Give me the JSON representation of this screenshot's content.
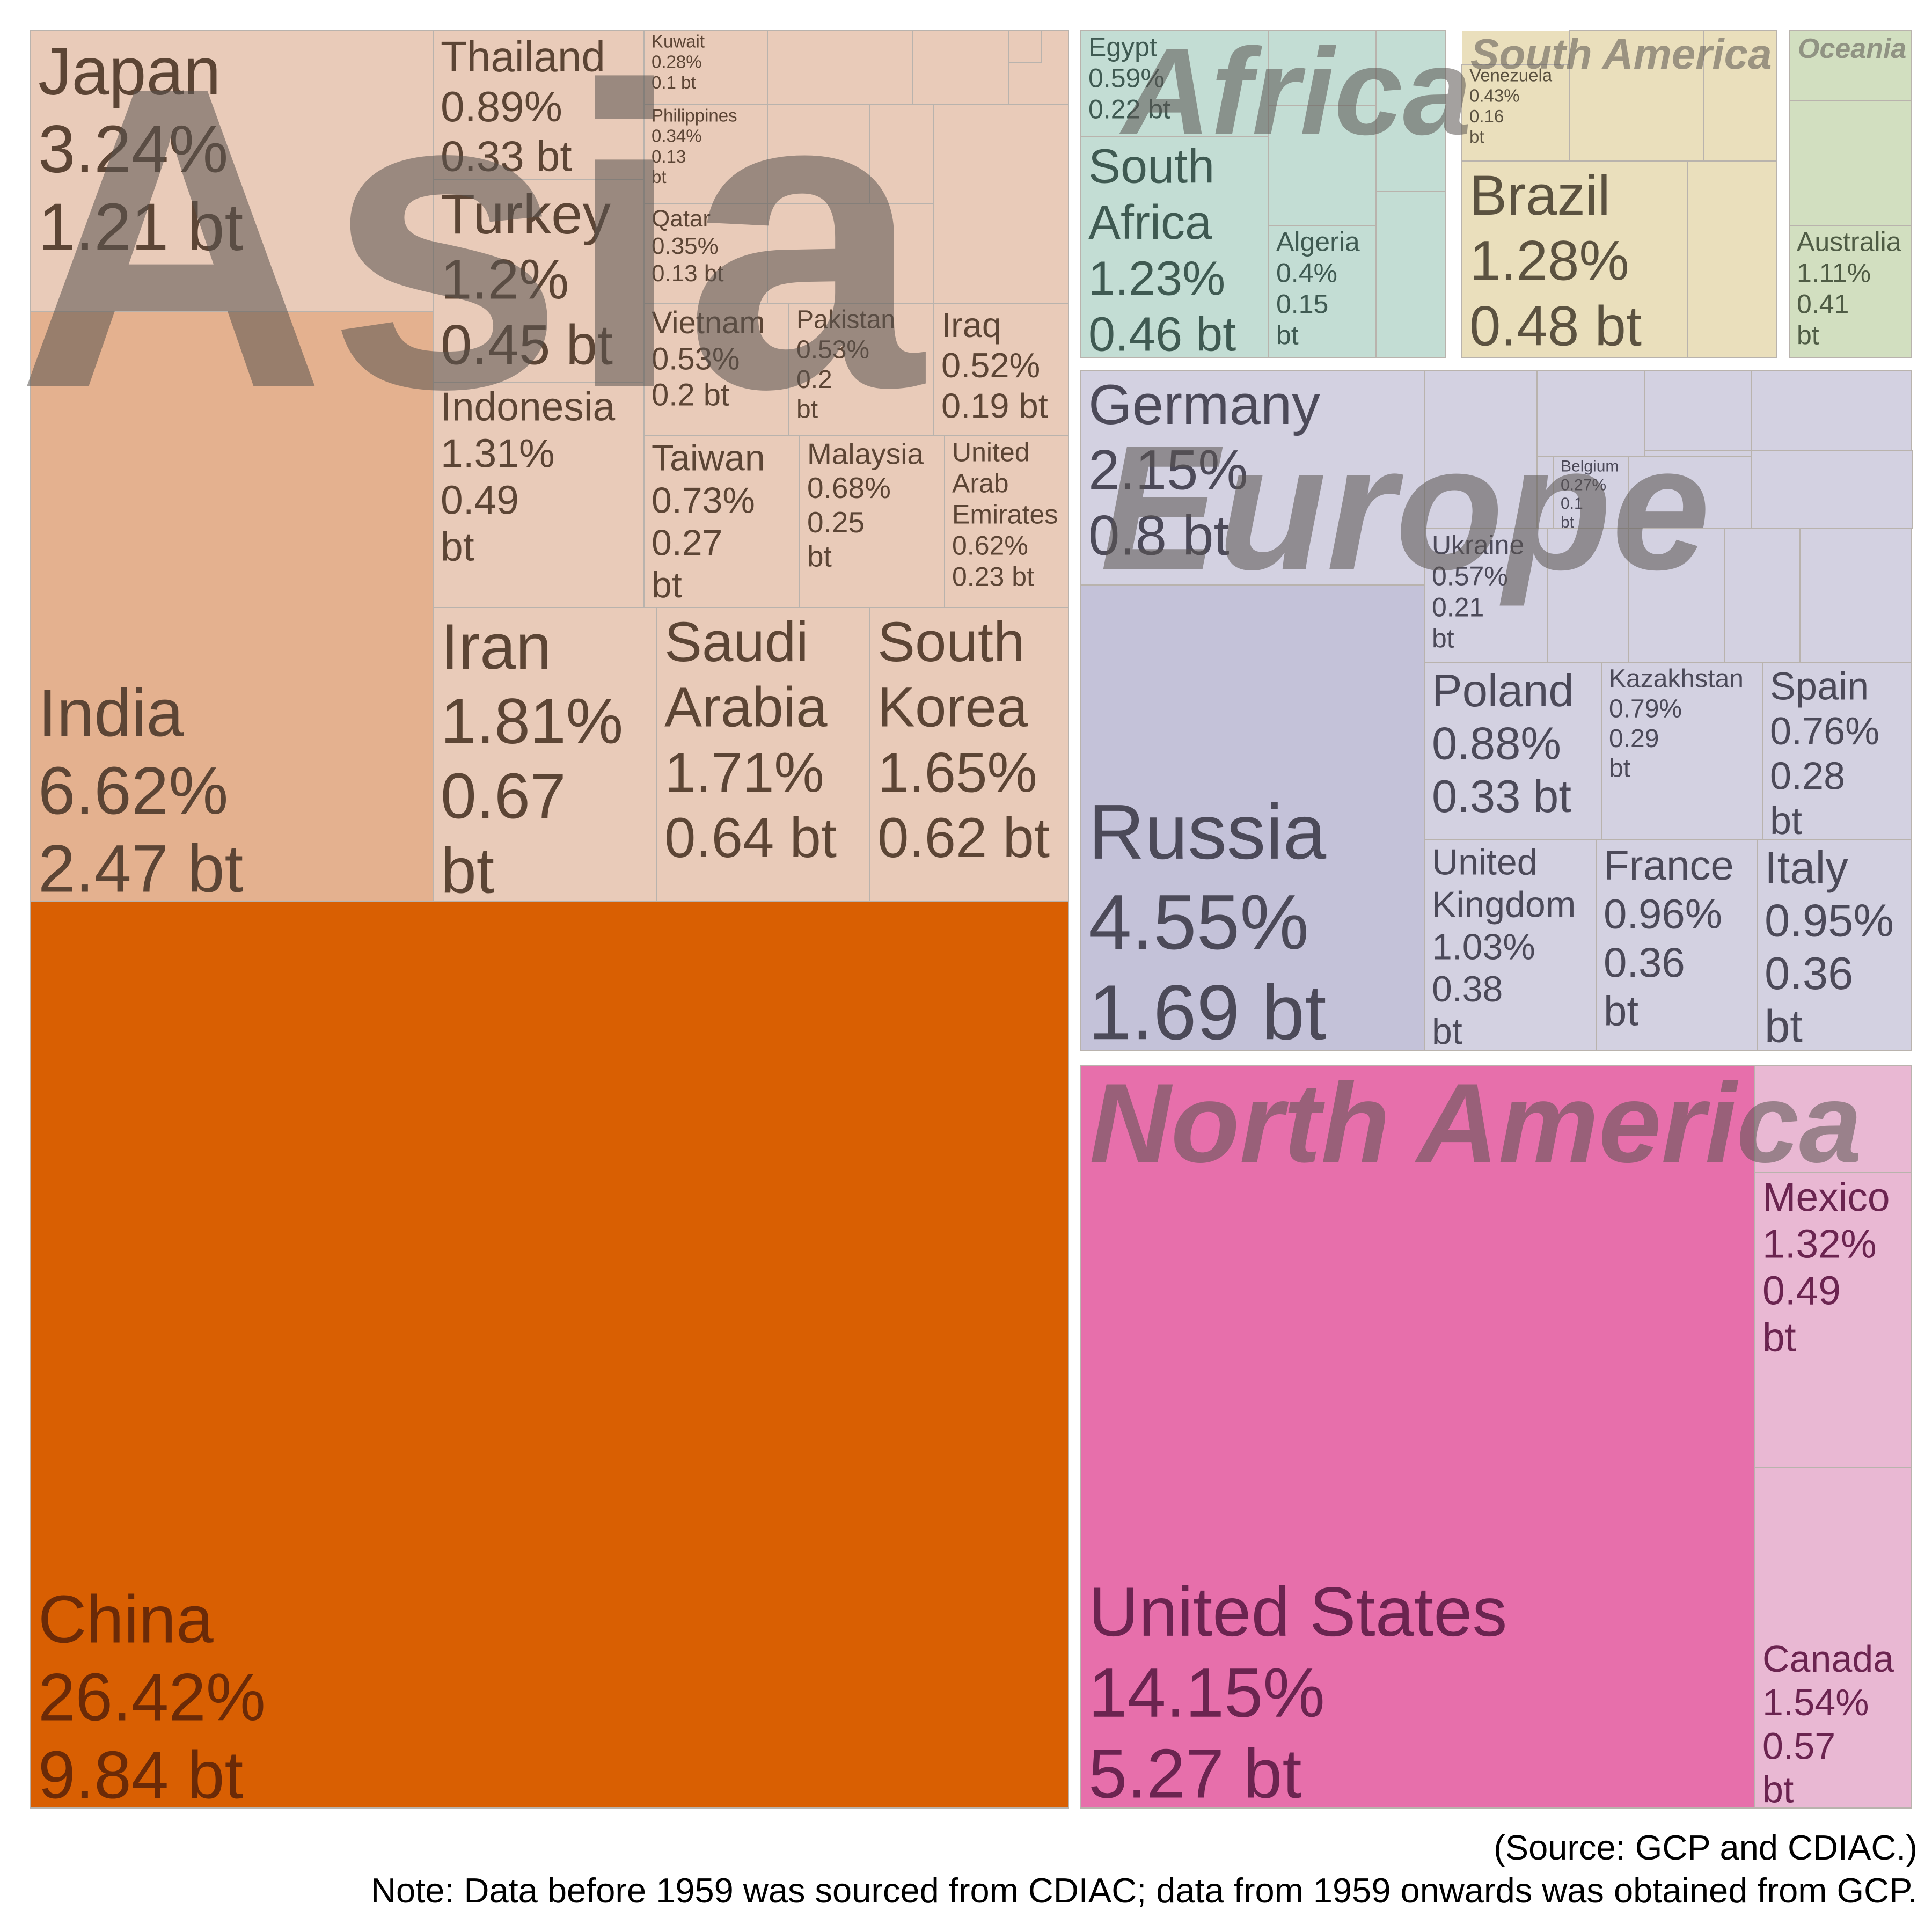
{
  "chart_data": {
    "type": "treemap",
    "title": "",
    "unit_share": "%",
    "unit_emissions": "bt",
    "groups": [
      {
        "name": "Asia",
        "color": "#e9cbb9",
        "items": [
          {
            "name": "China",
            "share": "26.42%",
            "value": "9.84 bt",
            "color": "#d95f02"
          },
          {
            "name": "India",
            "share": "6.62%",
            "value": "2.47 bt",
            "color": "#e4b18f"
          },
          {
            "name": "Japan",
            "share": "3.24%",
            "value": "1.21 bt"
          },
          {
            "name": "Iran",
            "share": "1.81%",
            "value": "0.67 bt"
          },
          {
            "name": "Saudi Arabia",
            "share": "1.71%",
            "value": "0.64 bt"
          },
          {
            "name": "South Korea",
            "share": "1.65%",
            "value": "0.62 bt"
          },
          {
            "name": "Indonesia",
            "share": "1.31%",
            "value": "0.49 bt"
          },
          {
            "name": "Turkey",
            "share": "1.2%",
            "value": "0.45 bt"
          },
          {
            "name": "Thailand",
            "share": "0.89%",
            "value": "0.33 bt"
          },
          {
            "name": "Taiwan",
            "share": "0.73%",
            "value": "0.27 bt"
          },
          {
            "name": "Malaysia",
            "share": "0.68%",
            "value": "0.25 bt"
          },
          {
            "name": "United Arab Emirates",
            "share": "0.62%",
            "value": "0.23 bt"
          },
          {
            "name": "Vietnam",
            "share": "0.53%",
            "value": "0.2 bt"
          },
          {
            "name": "Pakistan",
            "share": "0.53%",
            "value": "0.2 bt"
          },
          {
            "name": "Iraq",
            "share": "0.52%",
            "value": "0.19 bt"
          },
          {
            "name": "Qatar",
            "share": "0.35%",
            "value": "0.13 bt"
          },
          {
            "name": "Philippines",
            "share": "0.34%",
            "value": "0.13 bt"
          },
          {
            "name": "Kuwait",
            "share": "0.28%",
            "value": "0.1 bt"
          }
        ]
      },
      {
        "name": "North America",
        "color": "#e9b8d3",
        "items": [
          {
            "name": "United States",
            "share": "14.15%",
            "value": "5.27 bt",
            "color": "#e76fab"
          },
          {
            "name": "Canada",
            "share": "1.54%",
            "value": "0.57 bt"
          },
          {
            "name": "Mexico",
            "share": "1.32%",
            "value": "0.49 bt"
          }
        ]
      },
      {
        "name": "Europe",
        "color": "#d3d1e1",
        "items": [
          {
            "name": "Russia",
            "share": "4.55%",
            "value": "1.69 bt",
            "color": "#c4c2d9"
          },
          {
            "name": "Germany",
            "share": "2.15%",
            "value": "0.8 bt"
          },
          {
            "name": "United Kingdom",
            "share": "1.03%",
            "value": "0.38 bt"
          },
          {
            "name": "France",
            "share": "0.96%",
            "value": "0.36 bt"
          },
          {
            "name": "Italy",
            "share": "0.95%",
            "value": "0.36 bt"
          },
          {
            "name": "Poland",
            "share": "0.88%",
            "value": "0.33 bt"
          },
          {
            "name": "Kazakhstan",
            "share": "0.79%",
            "value": "0.29 bt"
          },
          {
            "name": "Spain",
            "share": "0.76%",
            "value": "0.28 bt"
          },
          {
            "name": "Ukraine",
            "share": "0.57%",
            "value": "0.21 bt"
          },
          {
            "name": "Belgium",
            "share": "0.27%",
            "value": "0.1 bt"
          }
        ]
      },
      {
        "name": "Africa",
        "color": "#c3ddd4",
        "items": [
          {
            "name": "South Africa",
            "share": "1.23%",
            "value": "0.46 bt"
          },
          {
            "name": "Egypt",
            "share": "0.59%",
            "value": "0.22 bt"
          },
          {
            "name": "Algeria",
            "share": "0.4%",
            "value": "0.15 bt"
          }
        ]
      },
      {
        "name": "South America",
        "color": "#eadfbc",
        "items": [
          {
            "name": "Brazil",
            "share": "1.28%",
            "value": "0.48 bt"
          },
          {
            "name": "Venezuela",
            "share": "0.43%",
            "value": "0.16 bt"
          }
        ]
      },
      {
        "name": "Oceania",
        "color": "#d2dfc0",
        "items": [
          {
            "name": "Australia",
            "share": "1.11%",
            "value": "0.41 bt"
          }
        ]
      }
    ],
    "source": "(Source: GCP and CDIAC.)",
    "note": "Note: Data before 1959 was sourced from CDIAC; data from 1959 onwards was obtained from GCP."
  }
}
